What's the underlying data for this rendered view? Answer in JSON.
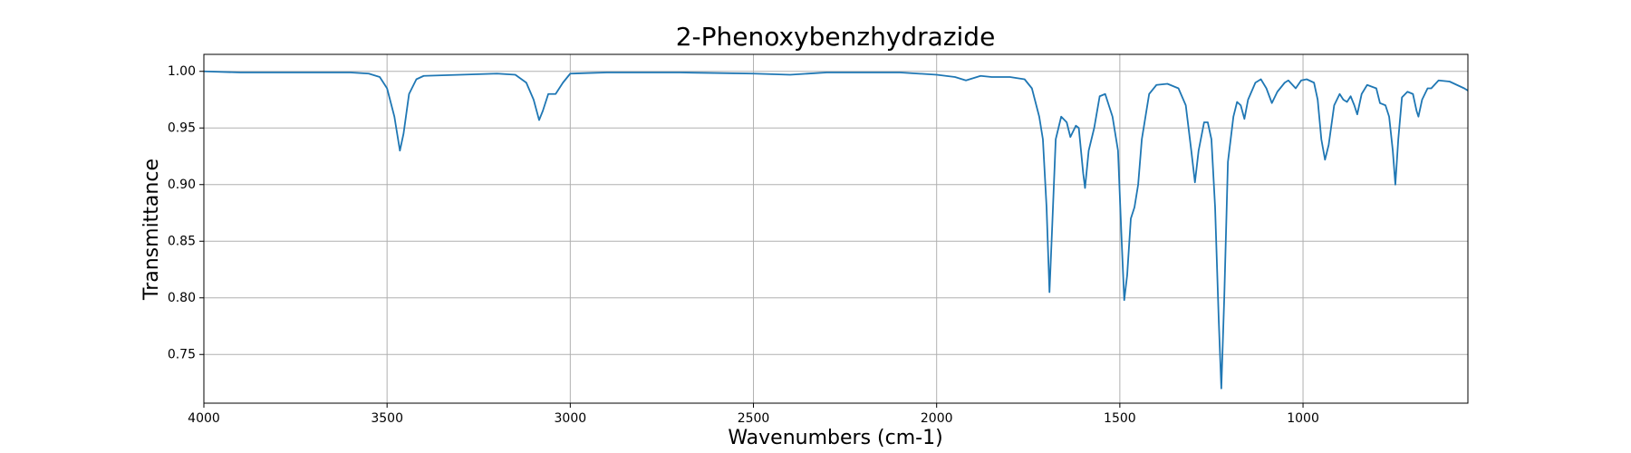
{
  "chart_data": {
    "type": "line",
    "title": "2-Phenoxybenzhydrazide",
    "x_label": "Wavenumbers (cm-1)",
    "y_label": "Transmittance",
    "color": "#1f77b4",
    "grid": true,
    "xlim": [
      4000,
      550
    ],
    "ylim": [
      0.707,
      1.015
    ],
    "xticks": [
      4000,
      3500,
      3000,
      2500,
      2000,
      1500,
      1000
    ],
    "yticks": [
      {
        "value": 1,
        "label": "1.00"
      },
      0.95,
      {
        "value": 0.9,
        "label": "0.90"
      },
      0.85,
      {
        "value": 0.8,
        "label": "0.80"
      },
      0.75
    ],
    "x": [
      4000,
      3900,
      3800,
      3700,
      3600,
      3550,
      3520,
      3500,
      3480,
      3465,
      3455,
      3440,
      3420,
      3400,
      3300,
      3200,
      3150,
      3120,
      3100,
      3085,
      3075,
      3060,
      3040,
      3020,
      3000,
      2900,
      2700,
      2500,
      2400,
      2300,
      2100,
      2000,
      1950,
      1920,
      1880,
      1850,
      1800,
      1760,
      1740,
      1720,
      1710,
      1700,
      1692,
      1685,
      1675,
      1660,
      1645,
      1635,
      1620,
      1612,
      1600,
      1595,
      1585,
      1570,
      1555,
      1540,
      1520,
      1505,
      1495,
      1488,
      1480,
      1470,
      1460,
      1450,
      1440,
      1420,
      1400,
      1370,
      1340,
      1320,
      1305,
      1295,
      1285,
      1270,
      1260,
      1250,
      1240,
      1230,
      1223,
      1215,
      1205,
      1190,
      1180,
      1170,
      1160,
      1150,
      1130,
      1115,
      1100,
      1085,
      1070,
      1050,
      1040,
      1020,
      1005,
      990,
      970,
      960,
      950,
      940,
      930,
      915,
      900,
      890,
      880,
      870,
      860,
      852,
      840,
      825,
      800,
      790,
      775,
      765,
      755,
      748,
      740,
      730,
      715,
      700,
      690,
      685,
      675,
      660,
      650,
      630,
      600,
      580,
      560,
      550
    ],
    "values": [
      1.0,
      0.999,
      0.999,
      0.999,
      0.999,
      0.998,
      0.995,
      0.985,
      0.96,
      0.93,
      0.945,
      0.98,
      0.993,
      0.996,
      0.997,
      0.998,
      0.997,
      0.99,
      0.975,
      0.957,
      0.965,
      0.98,
      0.98,
      0.99,
      0.998,
      0.999,
      0.999,
      0.998,
      0.997,
      0.999,
      0.999,
      0.997,
      0.995,
      0.992,
      0.996,
      0.995,
      0.995,
      0.993,
      0.985,
      0.96,
      0.94,
      0.88,
      0.805,
      0.86,
      0.94,
      0.96,
      0.955,
      0.942,
      0.952,
      0.95,
      0.91,
      0.897,
      0.93,
      0.95,
      0.978,
      0.98,
      0.96,
      0.93,
      0.85,
      0.798,
      0.82,
      0.87,
      0.88,
      0.9,
      0.94,
      0.98,
      0.988,
      0.989,
      0.985,
      0.97,
      0.93,
      0.902,
      0.93,
      0.955,
      0.955,
      0.94,
      0.88,
      0.78,
      0.72,
      0.8,
      0.92,
      0.96,
      0.973,
      0.97,
      0.958,
      0.975,
      0.99,
      0.993,
      0.985,
      0.972,
      0.982,
      0.99,
      0.992,
      0.985,
      0.992,
      0.993,
      0.99,
      0.975,
      0.94,
      0.922,
      0.935,
      0.97,
      0.98,
      0.975,
      0.973,
      0.978,
      0.97,
      0.962,
      0.98,
      0.988,
      0.985,
      0.972,
      0.97,
      0.96,
      0.93,
      0.9,
      0.94,
      0.977,
      0.982,
      0.98,
      0.965,
      0.96,
      0.975,
      0.985,
      0.985,
      0.992,
      0.991,
      0.988,
      0.985,
      0.983
    ]
  }
}
